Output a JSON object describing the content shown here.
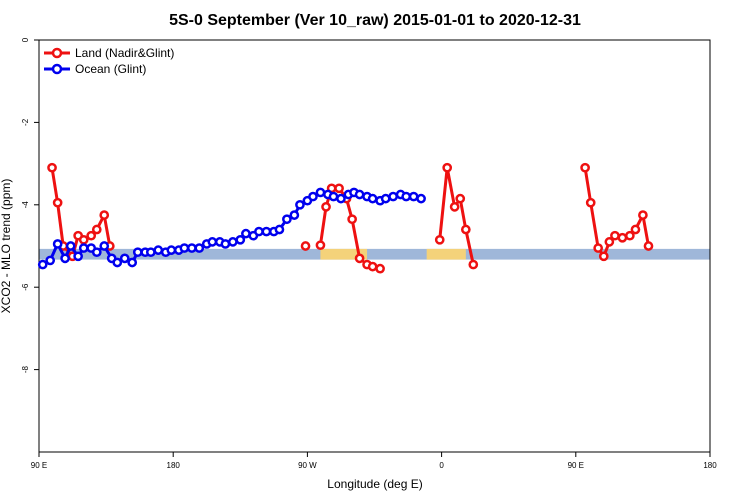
{
  "chart_data": {
    "type": "line",
    "title": "5S-0 September (Ver 10_raw)   2015-01-01 to 2020-12-31",
    "xlabel": "Longitude (deg E)",
    "ylabel": "XCO2 - MLO trend (ppm)",
    "xlim": [
      90,
      450
    ],
    "ylim": [
      -10,
      0
    ],
    "x_ticks": [
      {
        "value": 90,
        "label": "90 E"
      },
      {
        "value": 162,
        "label": "180"
      },
      {
        "value": 234,
        "label": "90 W"
      },
      {
        "value": 306,
        "label": "0"
      },
      {
        "value": 378,
        "label": "90 E"
      },
      {
        "value": 450,
        "label": "180"
      }
    ],
    "y_ticks": [
      {
        "value": 0,
        "label": "0"
      },
      {
        "value": -2,
        "label": "-2"
      },
      {
        "value": -4,
        "label": "-4"
      },
      {
        "value": -6,
        "label": "-6"
      },
      {
        "value": -8,
        "label": "-8"
      }
    ],
    "grid": false,
    "legend_position": "top-left",
    "band": {
      "y_center": -5.2,
      "half_width": 0.13,
      "color": "#9fb7d9",
      "highlight_color": "#f4d27a",
      "highlight_ranges": [
        [
          241,
          266
        ],
        [
          298,
          319
        ]
      ]
    },
    "series": [
      {
        "name": "Land (Nadir&Glint)",
        "color": "#ee1111",
        "segments": [
          [
            [
              97,
              -3.1
            ],
            [
              100,
              -3.95
            ],
            [
              103,
              -5.0
            ],
            [
              108,
              -5.25
            ],
            [
              111,
              -4.75
            ],
            [
              114,
              -4.85
            ],
            [
              118,
              -4.75
            ],
            [
              121,
              -4.6
            ],
            [
              125,
              -4.25
            ],
            [
              128,
              -5.0
            ]
          ],
          [
            [
              233,
              -5.0
            ]
          ],
          [
            [
              241,
              -4.98
            ],
            [
              244,
              -4.05
            ],
            [
              247,
              -3.6
            ],
            [
              251,
              -3.6
            ],
            [
              255,
              -3.85
            ],
            [
              258,
              -4.35
            ],
            [
              262,
              -5.3
            ],
            [
              266,
              -5.45
            ],
            [
              269,
              -5.5
            ],
            [
              273,
              -5.55
            ]
          ],
          [
            [
              305,
              -4.85
            ],
            [
              309,
              -3.1
            ],
            [
              313,
              -4.05
            ],
            [
              316,
              -3.85
            ],
            [
              319,
              -4.6
            ],
            [
              323,
              -5.45
            ]
          ],
          [
            [
              383,
              -3.1
            ],
            [
              386,
              -3.95
            ],
            [
              390,
              -5.05
            ],
            [
              393,
              -5.25
            ],
            [
              396,
              -4.9
            ],
            [
              399,
              -4.75
            ],
            [
              403,
              -4.8
            ],
            [
              407,
              -4.75
            ],
            [
              410,
              -4.6
            ],
            [
              414,
              -4.25
            ],
            [
              417,
              -5.0
            ]
          ]
        ]
      },
      {
        "name": "Ocean (Glint)",
        "color": "#0000ee",
        "segments": [
          [
            [
              92,
              -5.45
            ],
            [
              96,
              -5.35
            ],
            [
              100,
              -4.95
            ],
            [
              104,
              -5.3
            ],
            [
              107,
              -5.0
            ],
            [
              111,
              -5.25
            ],
            [
              114,
              -5.05
            ],
            [
              118,
              -5.05
            ],
            [
              121,
              -5.15
            ],
            [
              125,
              -5.0
            ],
            [
              129,
              -5.3
            ],
            [
              132,
              -5.4
            ],
            [
              136,
              -5.3
            ],
            [
              140,
              -5.4
            ],
            [
              143,
              -5.15
            ],
            [
              147,
              -5.15
            ],
            [
              150,
              -5.15
            ],
            [
              154,
              -5.1
            ],
            [
              158,
              -5.15
            ],
            [
              161,
              -5.1
            ],
            [
              165,
              -5.1
            ],
            [
              168,
              -5.05
            ],
            [
              172,
              -5.05
            ],
            [
              176,
              -5.05
            ],
            [
              180,
              -4.95
            ],
            [
              183,
              -4.9
            ],
            [
              187,
              -4.9
            ],
            [
              190,
              -4.95
            ],
            [
              194,
              -4.9
            ],
            [
              198,
              -4.85
            ],
            [
              201,
              -4.7
            ],
            [
              205,
              -4.75
            ],
            [
              208,
              -4.65
            ],
            [
              212,
              -4.65
            ],
            [
              216,
              -4.65
            ],
            [
              219,
              -4.6
            ],
            [
              223,
              -4.35
            ],
            [
              227,
              -4.25
            ],
            [
              230,
              -4.0
            ],
            [
              234,
              -3.9
            ],
            [
              237,
              -3.8
            ],
            [
              241,
              -3.7
            ],
            [
              245,
              -3.75
            ],
            [
              248,
              -3.8
            ],
            [
              252,
              -3.85
            ],
            [
              256,
              -3.75
            ],
            [
              259,
              -3.7
            ],
            [
              262,
              -3.75
            ],
            [
              266,
              -3.8
            ],
            [
              269,
              -3.85
            ],
            [
              273,
              -3.9
            ],
            [
              276,
              -3.85
            ],
            [
              280,
              -3.8
            ],
            [
              284,
              -3.75
            ],
            [
              287,
              -3.8
            ],
            [
              291,
              -3.8
            ],
            [
              295,
              -3.85
            ]
          ]
        ]
      }
    ]
  }
}
